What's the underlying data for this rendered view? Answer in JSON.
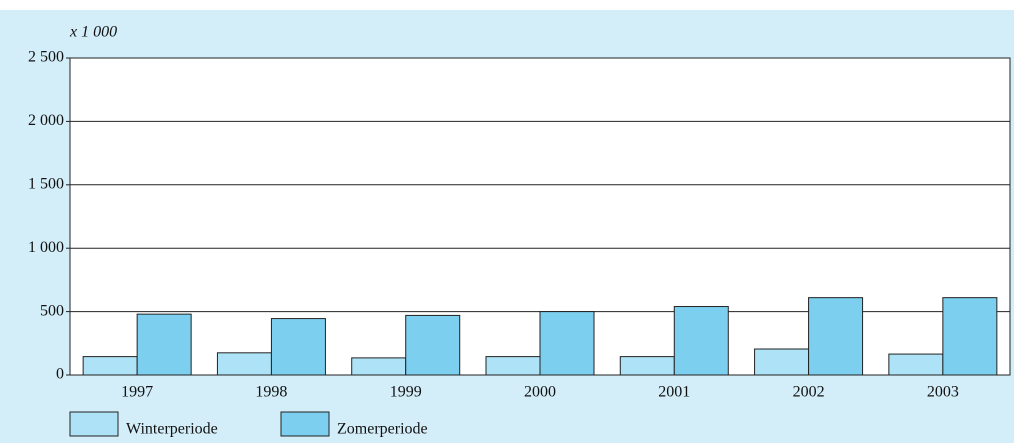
{
  "chart_data": {
    "type": "bar",
    "unit_label": "x 1 000",
    "categories": [
      "1997",
      "1998",
      "1999",
      "2000",
      "2001",
      "2002",
      "2003"
    ],
    "series": [
      {
        "name": "Winterperiode",
        "color": "#aee3f7",
        "values": [
          145,
          175,
          135,
          145,
          145,
          205,
          165
        ]
      },
      {
        "name": "Zomerperiode",
        "color": "#7ccfef",
        "values": [
          480,
          445,
          470,
          500,
          540,
          610,
          610
        ]
      }
    ],
    "ylim": [
      0,
      2500
    ],
    "yticks": [
      0,
      500,
      {
        "value": 1000,
        "label": "1 000"
      },
      {
        "value": 1500,
        "label": "1 500"
      },
      {
        "value": 2000,
        "label": "2 000"
      },
      {
        "value": 2500,
        "label": "2 500"
      }
    ],
    "grid": true,
    "legend": "bottom"
  }
}
